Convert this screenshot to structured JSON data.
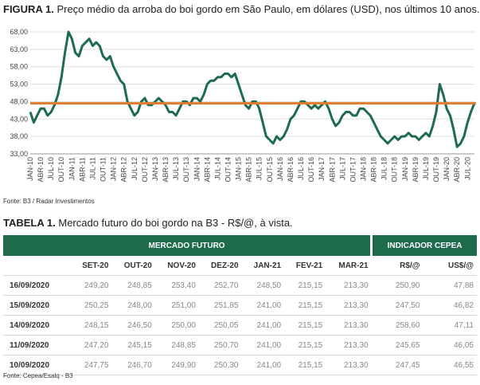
{
  "figure": {
    "label": "FIGURA 1.",
    "title": "Preço médio da arroba do boi gordo em São Paulo, em dólares (USD), nos últimos 10 anos.",
    "source": "Fonte: B3 / Radar Investimentos"
  },
  "chart_data": {
    "type": "line",
    "color": "#1f6b4e",
    "categories": [
      "JAN-10",
      null,
      null,
      "ABR-10",
      null,
      null,
      "JUL-10",
      null,
      null,
      "OUT-10",
      null,
      null,
      "JAN-11",
      null,
      null,
      "ABR-11",
      null,
      null,
      "JUL-11",
      null,
      null,
      "OUT-11",
      null,
      null,
      "JAN-12",
      null,
      null,
      "ABR-12",
      null,
      null,
      "JUL-12",
      null,
      null,
      "OUT-12",
      null,
      null,
      "JAN-13",
      null,
      null,
      "ABR-13",
      null,
      null,
      "JUL-13",
      null,
      null,
      "OUT-13",
      null,
      null,
      "JAN-14",
      null,
      null,
      "ABR-14",
      null,
      null,
      "JUL-14",
      null,
      null,
      "OUT-14",
      null,
      null,
      "JAN-15",
      null,
      null,
      "ABR-15",
      null,
      null,
      "JUL-15",
      null,
      null,
      "OUT-15",
      null,
      null,
      "JAN-16",
      null,
      null,
      "ABR-16",
      null,
      null,
      "JUL-16",
      null,
      null,
      "OUT-16",
      null,
      null,
      "JAN-17",
      null,
      null,
      "ABR-17",
      null,
      null,
      "JUL-17",
      null,
      null,
      "OUT-17",
      null,
      null,
      "JAN-18",
      null,
      null,
      "ABR-18",
      null,
      null,
      "JUL-18",
      null,
      null,
      "OUT-18",
      null,
      null,
      "JAN-19",
      null,
      null,
      "ABR-19",
      null,
      null,
      "JUL-19",
      null,
      null,
      "OUT-19",
      null,
      null,
      "JAN-20",
      null,
      null,
      "ABR-20",
      null,
      null,
      "JUL-20",
      null,
      null
    ],
    "values": [
      45,
      42,
      44,
      46,
      46,
      44,
      45,
      47,
      50,
      55,
      62,
      68,
      66,
      62,
      61,
      64,
      65,
      66,
      64,
      65,
      64,
      61,
      60,
      61,
      58,
      56,
      54,
      53,
      48,
      46,
      44,
      45,
      48,
      49,
      47,
      47,
      48,
      49,
      48,
      47,
      45,
      45,
      44,
      46,
      48,
      48,
      47,
      49,
      49,
      48,
      50,
      53,
      54,
      54,
      55,
      55,
      56,
      56,
      55,
      56,
      53,
      50,
      47,
      46,
      48,
      48,
      46,
      42,
      38,
      37,
      36,
      38,
      37,
      38,
      40,
      43,
      44,
      46,
      48,
      48,
      47,
      46,
      47,
      46,
      47,
      48,
      46,
      43,
      41,
      42,
      44,
      45,
      45,
      44,
      44,
      46,
      46,
      45,
      44,
      42,
      40,
      38,
      37,
      36,
      37,
      38,
      37,
      38,
      38,
      39,
      38,
      38,
      37,
      38,
      39,
      38,
      41,
      45,
      53,
      50,
      46,
      44,
      40,
      35,
      36,
      38,
      42,
      45,
      47.5
    ],
    "reference_line": {
      "value": 47.5,
      "color": "#e07b2a"
    },
    "ylim": [
      33,
      68
    ],
    "yticks": [
      {
        "value": 33,
        "label": "33,00"
      },
      {
        "value": 38,
        "label": "38,00"
      },
      {
        "value": 43,
        "label": "43,00"
      },
      {
        "value": 48,
        "label": "48,00"
      },
      {
        "value": 53,
        "label": "53,00"
      },
      {
        "value": 58,
        "label": "58,00"
      },
      {
        "value": 63,
        "label": "63,00"
      },
      {
        "value": 68,
        "label": "68,00"
      }
    ],
    "grid": true
  },
  "table": {
    "label": "TABELA 1.",
    "title": "Mercado futuro do boi gordo na B3 - R$/@, à vista.",
    "groups": [
      "MERCADO FUTURO",
      "INDICADOR CEPEA"
    ],
    "columns": [
      "SET-20",
      "OUT-20",
      "NOV-20",
      "DEZ-20",
      "JAN-21",
      "FEV-21",
      "MAR-21",
      "R$/@",
      "US$/@"
    ],
    "rows": [
      [
        "16/09/2020",
        "249,20",
        "248,85",
        "253,40",
        "252,70",
        "248,50",
        "215,15",
        "213,30",
        "250,90",
        "47,88"
      ],
      [
        "15/09/2020",
        "250,25",
        "248,00",
        "251,00",
        "251,85",
        "241,00",
        "215,15",
        "213,30",
        "247,50",
        "46,82"
      ],
      [
        "14/09/2020",
        "248,15",
        "246,50",
        "250,00",
        "250,05",
        "241,00",
        "215,15",
        "213,30",
        "258,60",
        "47,11"
      ],
      [
        "11/09/2020",
        "247,20",
        "245,15",
        "248,85",
        "250,70",
        "241,00",
        "215,15",
        "213,30",
        "245,65",
        "46,05"
      ],
      [
        "10/09/2020",
        "247,75",
        "246,70",
        "249,90",
        "250,30",
        "241,00",
        "215,15",
        "213,30",
        "247,45",
        "46,55"
      ]
    ],
    "source": "Fonte: Cepea/Esalq - B3"
  }
}
